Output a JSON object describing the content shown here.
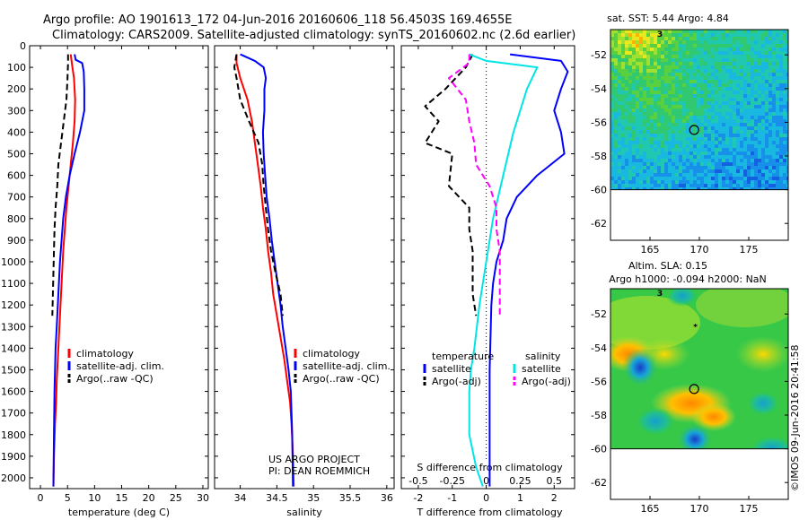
{
  "title": {
    "line1": "Argo profile: AO 1901613_172 04-Jun-2016 20160606_118 56.4503S 169.4655E",
    "line2": "Climatology: CARS2009. Satellite-adjusted climatology: synTS_20160602.nc (2.6d earlier)"
  },
  "credit": "©IMOS 09-Jun-2016 20:41:58",
  "colors": {
    "climatology": "#ff0000",
    "satellite": "#0000ff",
    "argo": "#000000",
    "satellite_cyan": "#00e5e5",
    "argo_adj_magenta": "#ff00ff"
  },
  "chart_data": [
    {
      "type": "line",
      "name": "temperature-panel",
      "xlabel": "temperature (deg C)",
      "ylabel": "",
      "xlim": [
        -2,
        31
      ],
      "ylim": [
        2050,
        0
      ],
      "xticks": [
        "0",
        "5",
        "10",
        "15",
        "20",
        "25",
        "30"
      ],
      "xtick_values": [
        0,
        5,
        10,
        15,
        20,
        25,
        30
      ],
      "yticks": [
        "0",
        "100",
        "200",
        "300",
        "400",
        "500",
        "600",
        "700",
        "800",
        "900",
        "1000",
        "1100",
        "1200",
        "1300",
        "1400",
        "1500",
        "1600",
        "1700",
        "1800",
        "1900",
        "2000"
      ],
      "ytick_values": [
        0,
        100,
        200,
        300,
        400,
        500,
        600,
        700,
        800,
        900,
        1000,
        1100,
        1200,
        1300,
        1400,
        1500,
        1600,
        1700,
        1800,
        1900,
        2000
      ],
      "legend": [
        "climatology",
        "satellite-adj. clim.",
        "Argo(..raw -QC)"
      ],
      "series": [
        {
          "name": "climatology",
          "color": "#ff0000",
          "dash": "",
          "x": [
            5.6,
            5.8,
            6.2,
            6.4,
            6.3,
            6.0,
            5.6,
            5.2,
            4.8,
            4.5,
            4.2,
            4.0,
            3.8,
            3.6,
            3.4,
            3.2,
            3.0,
            2.9,
            2.7,
            2.5,
            2.4
          ],
          "y": [
            40,
            80,
            150,
            250,
            350,
            450,
            550,
            650,
            750,
            850,
            950,
            1050,
            1150,
            1250,
            1350,
            1450,
            1550,
            1650,
            1750,
            1900,
            2040
          ]
        },
        {
          "name": "satellite-adj. clim.",
          "color": "#0000ff",
          "dash": "",
          "x": [
            6.3,
            6.5,
            7.7,
            8.0,
            8.1,
            8.1,
            7.3,
            6.3,
            5.4,
            4.7,
            4.2,
            3.9,
            3.6,
            3.4,
            3.2,
            3.0,
            2.8,
            2.7,
            2.6,
            2.5,
            2.4
          ],
          "y": [
            40,
            65,
            80,
            120,
            200,
            300,
            400,
            500,
            600,
            700,
            800,
            900,
            1000,
            1100,
            1200,
            1300,
            1400,
            1500,
            1600,
            1800,
            2040
          ]
        },
        {
          "name": "Argo(..raw -QC)",
          "color": "#000000",
          "dash": "7,4",
          "x": [
            5.1,
            5.1,
            5.0,
            4.8,
            4.3,
            3.8,
            3.3,
            3.1,
            2.8,
            2.6,
            2.5,
            2.4,
            2.3,
            2.2
          ],
          "y": [
            40,
            80,
            150,
            250,
            350,
            450,
            550,
            650,
            750,
            850,
            950,
            1050,
            1150,
            1250
          ]
        }
      ]
    },
    {
      "type": "line",
      "name": "salinity-panel",
      "xlabel": "salinity",
      "ylabel": "",
      "xlim": [
        33.65,
        36.1
      ],
      "ylim": [
        2050,
        0
      ],
      "xticks": [
        "34",
        "34.5",
        "35",
        "35.5",
        "36"
      ],
      "xtick_values": [
        34,
        34.5,
        35,
        35.5,
        36
      ],
      "legend": [
        "climatology",
        "satellite-adj. clim.",
        "Argo(..raw -QC)"
      ],
      "annotations": [
        "US ARGO PROJECT",
        "PI: DEAN ROEMMICH"
      ],
      "series": [
        {
          "name": "climatology",
          "color": "#ff0000",
          "dash": "",
          "x": [
            33.95,
            33.95,
            34.0,
            34.1,
            34.16,
            34.2,
            34.24,
            34.28,
            34.31,
            34.35,
            34.38,
            34.42,
            34.45,
            34.5,
            34.55,
            34.6,
            34.64,
            34.68,
            34.7,
            34.72,
            34.73
          ],
          "y": [
            40,
            80,
            150,
            250,
            350,
            450,
            550,
            650,
            750,
            850,
            950,
            1050,
            1150,
            1250,
            1350,
            1450,
            1550,
            1650,
            1750,
            1900,
            2040
          ]
        },
        {
          "name": "satellite-adj. clim.",
          "color": "#0000ff",
          "dash": "",
          "x": [
            34.0,
            34.2,
            34.32,
            34.35,
            34.33,
            34.33,
            34.31,
            34.32,
            34.34,
            34.36,
            34.4,
            34.43,
            34.47,
            34.51,
            34.55,
            34.58,
            34.62,
            34.66,
            34.69,
            34.71,
            34.72
          ],
          "y": [
            40,
            70,
            100,
            150,
            200,
            300,
            400,
            500,
            600,
            700,
            800,
            900,
            1000,
            1100,
            1200,
            1300,
            1400,
            1500,
            1600,
            1800,
            2040
          ]
        },
        {
          "name": "Argo(..raw -QC)",
          "color": "#000000",
          "dash": "7,4",
          "x": [
            33.95,
            33.92,
            33.95,
            34.0,
            34.12,
            34.25,
            34.3,
            34.32,
            34.35,
            34.38,
            34.42,
            34.48,
            34.55,
            34.58
          ],
          "y": [
            40,
            100,
            150,
            250,
            350,
            450,
            550,
            650,
            750,
            850,
            950,
            1050,
            1150,
            1250
          ]
        }
      ]
    },
    {
      "type": "line",
      "name": "difference-panel",
      "xlabel": "T difference from climatology",
      "xlabel2": "S difference from climatology",
      "xlim": [
        -2.5,
        2.6
      ],
      "ylim": [
        2050,
        0
      ],
      "xticks": [
        "-2",
        "-1",
        "0",
        "1",
        "2"
      ],
      "xtick_values": [
        -2,
        -1,
        0,
        1,
        2
      ],
      "xticks2": [
        "-0.5",
        "-0.25",
        "0",
        "0.25",
        "0.5"
      ],
      "xtick2_positions": [
        -2,
        -1,
        0,
        1,
        2
      ],
      "legend_titles": [
        "temperature",
        "salinity"
      ],
      "legend": [
        "satellite",
        "Argo(-adj)",
        "satellite",
        "Argo(-adj)"
      ],
      "series": [
        {
          "name": "T satellite",
          "color": "#0000ff",
          "dash": "",
          "x": [
            0.7,
            2.2,
            2.4,
            2.2,
            2.0,
            2.2,
            2.3,
            1.5,
            0.9,
            0.6,
            0.5,
            0.3,
            0.2,
            0.15,
            0.1,
            0.1
          ],
          "y": [
            40,
            70,
            120,
            200,
            300,
            400,
            500,
            600,
            700,
            800,
            900,
            1000,
            1100,
            1200,
            1500,
            2040
          ]
        },
        {
          "name": "T Argo(-adj)",
          "color": "#000000",
          "dash": "7,4",
          "x": [
            -0.4,
            -0.6,
            -1.2,
            -1.8,
            -1.4,
            -1.8,
            -1.0,
            -1.1,
            -0.5,
            -0.5,
            -0.4,
            -0.4,
            -0.4,
            -0.3
          ],
          "y": [
            40,
            100,
            200,
            280,
            350,
            450,
            500,
            650,
            750,
            850,
            950,
            1050,
            1150,
            1250
          ]
        },
        {
          "name": "S satellite",
          "color": "#00e5e5",
          "dash": "",
          "x": [
            -0.5,
            0.0,
            1.5,
            1.2,
            0.8,
            0.5,
            0.2,
            0.0,
            -0.2,
            -0.35,
            -0.45,
            -0.5,
            -0.5,
            -0.3,
            -0.1
          ],
          "y": [
            40,
            70,
            100,
            200,
            400,
            600,
            800,
            1000,
            1200,
            1400,
            1500,
            1600,
            1800,
            1950,
            2040
          ]
        },
        {
          "name": "S Argo(-adj)",
          "color": "#ff00ff",
          "dash": "7,4",
          "x": [
            -0.5,
            -0.5,
            -1.1,
            -0.6,
            -0.5,
            -0.35,
            -0.3,
            0.1,
            0.3,
            0.3,
            0.4,
            0.4,
            0.4,
            0.4
          ],
          "y": [
            40,
            80,
            150,
            250,
            350,
            450,
            550,
            650,
            750,
            850,
            950,
            1050,
            1150,
            1250
          ]
        }
      ]
    },
    {
      "type": "heatmap",
      "name": "sst-map",
      "title": "sat. SST: 5.44  Argo: 4.84",
      "xlim": [
        161,
        179
      ],
      "ylim": [
        -63,
        -50.5
      ],
      "xticks": [
        "165",
        "170",
        "175"
      ],
      "xtick_values": [
        165,
        170,
        175
      ],
      "yticks": [
        "-52",
        "-54",
        "-56",
        "-58",
        "-60",
        "-62"
      ],
      "ytick_values": [
        -52,
        -54,
        -56,
        -58,
        -60,
        -62
      ],
      "marker": {
        "lon": 169.47,
        "lat": -56.45
      },
      "markers_small": [
        {
          "lon": 166,
          "lat": -50.7,
          "label": "3"
        }
      ],
      "data_lat_min": -60
    },
    {
      "type": "heatmap",
      "name": "sla-map",
      "title": "Altim. SLA: 0.15",
      "subtitle": "Argo h1000: -0.094  h2000: NaN",
      "xlim": [
        161,
        179
      ],
      "ylim": [
        -63,
        -50.5
      ],
      "xticks": [
        "165",
        "170",
        "175"
      ],
      "xtick_values": [
        165,
        170,
        175
      ],
      "yticks": [
        "-52",
        "-54",
        "-56",
        "-58",
        "-60",
        "-62"
      ],
      "ytick_values": [
        -52,
        -54,
        -56,
        -58,
        -60,
        -62
      ],
      "marker": {
        "lon": 169.47,
        "lat": -56.45
      },
      "markers_small": [
        {
          "lon": 166,
          "lat": -50.7,
          "label": "3"
        },
        {
          "lon": 169.6,
          "lat": -52.7,
          "label": "*"
        }
      ],
      "data_lat_min": -60
    }
  ]
}
